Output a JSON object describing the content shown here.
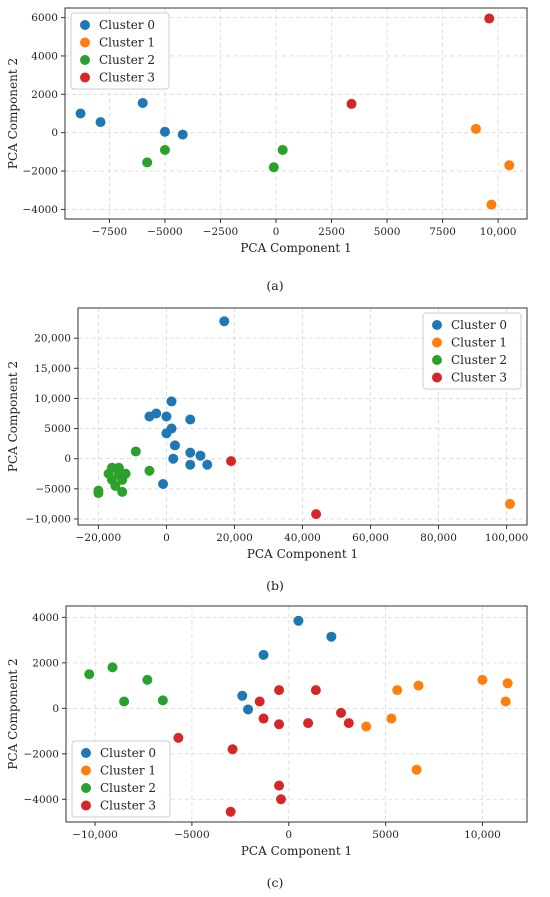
{
  "colors": {
    "cluster0": "#1f77b4",
    "cluster1": "#ff7f0e",
    "cluster2": "#2ca02c",
    "cluster3": "#d62728"
  },
  "chart_data": [
    {
      "type": "scatter",
      "caption": "(a)",
      "xlabel": "PCA Component 1",
      "ylabel": "PCA Component 2",
      "xlim": [
        -9500,
        11300
      ],
      "ylim": [
        -4500,
        6500
      ],
      "xticks": [
        -7500,
        -5000,
        -2500,
        0,
        2500,
        5000,
        7500,
        10000
      ],
      "xtick_labels": [
        "−7500",
        "−5000",
        "−2500",
        "0",
        "2500",
        "5000",
        "7500",
        "10,000"
      ],
      "yticks": [
        -4000,
        -2000,
        0,
        2000,
        4000,
        6000
      ],
      "ytick_labels": [
        "−4000",
        "−2000",
        "0",
        "2000",
        "4000",
        "6000"
      ],
      "grid": true,
      "legend_position": "top-left",
      "series": [
        {
          "name": "Cluster 0",
          "color_key": "cluster0",
          "points": [
            [
              -8800,
              1000
            ],
            [
              -7900,
              550
            ],
            [
              -6000,
              1550
            ],
            [
              -5000,
              50
            ],
            [
              -4200,
              -100
            ]
          ]
        },
        {
          "name": "Cluster 1",
          "color_key": "cluster1",
          "points": [
            [
              9000,
              200
            ],
            [
              10500,
              -1700
            ],
            [
              9700,
              -3750
            ]
          ]
        },
        {
          "name": "Cluster 2",
          "color_key": "cluster2",
          "points": [
            [
              -5800,
              -1550
            ],
            [
              -5000,
              -900
            ],
            [
              300,
              -900
            ],
            [
              -100,
              -1800
            ]
          ]
        },
        {
          "name": "Cluster 3",
          "color_key": "cluster3",
          "points": [
            [
              9600,
              5950
            ],
            [
              3400,
              1500
            ]
          ]
        }
      ]
    },
    {
      "type": "scatter",
      "caption": "(b)",
      "xlabel": "PCA Component 1",
      "ylabel": "PCA Component 2",
      "xlim": [
        -26000,
        106000
      ],
      "ylim": [
        -11000,
        25000
      ],
      "xticks": [
        -20000,
        0,
        20000,
        40000,
        60000,
        80000,
        100000
      ],
      "xtick_labels": [
        "−20,000",
        "0",
        "20,000",
        "40,000",
        "60,000",
        "80,000",
        "100,000"
      ],
      "yticks": [
        -10000,
        -5000,
        0,
        5000,
        10000,
        15000,
        20000
      ],
      "ytick_labels": [
        "−10,000",
        "−5000",
        "0",
        "5000",
        "10,000",
        "15,000",
        "20,000"
      ],
      "grid": true,
      "legend_position": "top-right",
      "series": [
        {
          "name": "Cluster 0",
          "color_key": "cluster0",
          "points": [
            [
              17000,
              22800
            ],
            [
              1500,
              9500
            ],
            [
              -5000,
              7000
            ],
            [
              -3000,
              7500
            ],
            [
              0,
              7000
            ],
            [
              7000,
              6500
            ],
            [
              1500,
              5000
            ],
            [
              0,
              4200
            ],
            [
              2500,
              2200
            ],
            [
              10000,
              500
            ],
            [
              7000,
              1000
            ],
            [
              2000,
              0
            ],
            [
              12000,
              -1000
            ],
            [
              7000,
              -1000
            ],
            [
              -1000,
              -4200
            ]
          ]
        },
        {
          "name": "Cluster 1",
          "color_key": "cluster1",
          "points": [
            [
              101000,
              -7500
            ]
          ]
        },
        {
          "name": "Cluster 2",
          "color_key": "cluster2",
          "points": [
            [
              -9000,
              1200
            ],
            [
              -17000,
              -2500
            ],
            [
              -16000,
              -1500
            ],
            [
              -14000,
              -2500
            ],
            [
              -13000,
              -3500
            ],
            [
              -16000,
              -3500
            ],
            [
              -15000,
              -4500
            ],
            [
              -13000,
              -5500
            ],
            [
              -20000,
              -5300
            ],
            [
              -20000,
              -5700
            ],
            [
              -5000,
              -2000
            ],
            [
              -12000,
              -2500
            ],
            [
              -14000,
              -1500
            ]
          ]
        },
        {
          "name": "Cluster 3",
          "color_key": "cluster3",
          "points": [
            [
              19000,
              -400
            ],
            [
              44000,
              -9200
            ]
          ]
        }
      ]
    },
    {
      "type": "scatter",
      "caption": "(c)",
      "xlabel": "PCA Component 1",
      "ylabel": "PCA Component 2",
      "xlim": [
        -11500,
        12300
      ],
      "ylim": [
        -5000,
        4500
      ],
      "xticks": [
        -10000,
        -5000,
        0,
        5000,
        10000
      ],
      "xtick_labels": [
        "−10,000",
        "−5000",
        "0",
        "5000",
        "10,000"
      ],
      "yticks": [
        -4000,
        -2000,
        0,
        2000,
        4000
      ],
      "ytick_labels": [
        "−4000",
        "−2000",
        "0",
        "2000",
        "4000"
      ],
      "grid": true,
      "legend_position": "bottom-left",
      "series": [
        {
          "name": "Cluster 0",
          "color_key": "cluster0",
          "points": [
            [
              500,
              3850
            ],
            [
              2200,
              3150
            ],
            [
              -1300,
              2350
            ],
            [
              -2400,
              550
            ],
            [
              -2100,
              -50
            ]
          ]
        },
        {
          "name": "Cluster 1",
          "color_key": "cluster1",
          "points": [
            [
              5600,
              800
            ],
            [
              6700,
              1000
            ],
            [
              4000,
              -800
            ],
            [
              5300,
              -450
            ],
            [
              6600,
              -2700
            ],
            [
              10000,
              1250
            ],
            [
              11300,
              1100
            ],
            [
              11200,
              300
            ]
          ]
        },
        {
          "name": "Cluster 2",
          "color_key": "cluster2",
          "points": [
            [
              -10300,
              1500
            ],
            [
              -9100,
              1800
            ],
            [
              -7300,
              1250
            ],
            [
              -8500,
              300
            ],
            [
              -6500,
              350
            ]
          ]
        },
        {
          "name": "Cluster 3",
          "color_key": "cluster3",
          "points": [
            [
              -5700,
              -1300
            ],
            [
              -2900,
              -1800
            ],
            [
              -1500,
              300
            ],
            [
              -1300,
              -450
            ],
            [
              -500,
              800
            ],
            [
              -500,
              -700
            ],
            [
              1000,
              -650
            ],
            [
              1400,
              800
            ],
            [
              2700,
              -200
            ],
            [
              3100,
              -650
            ],
            [
              -500,
              -3400
            ],
            [
              -400,
              -4000
            ],
            [
              -3000,
              -4550
            ]
          ]
        }
      ]
    }
  ]
}
